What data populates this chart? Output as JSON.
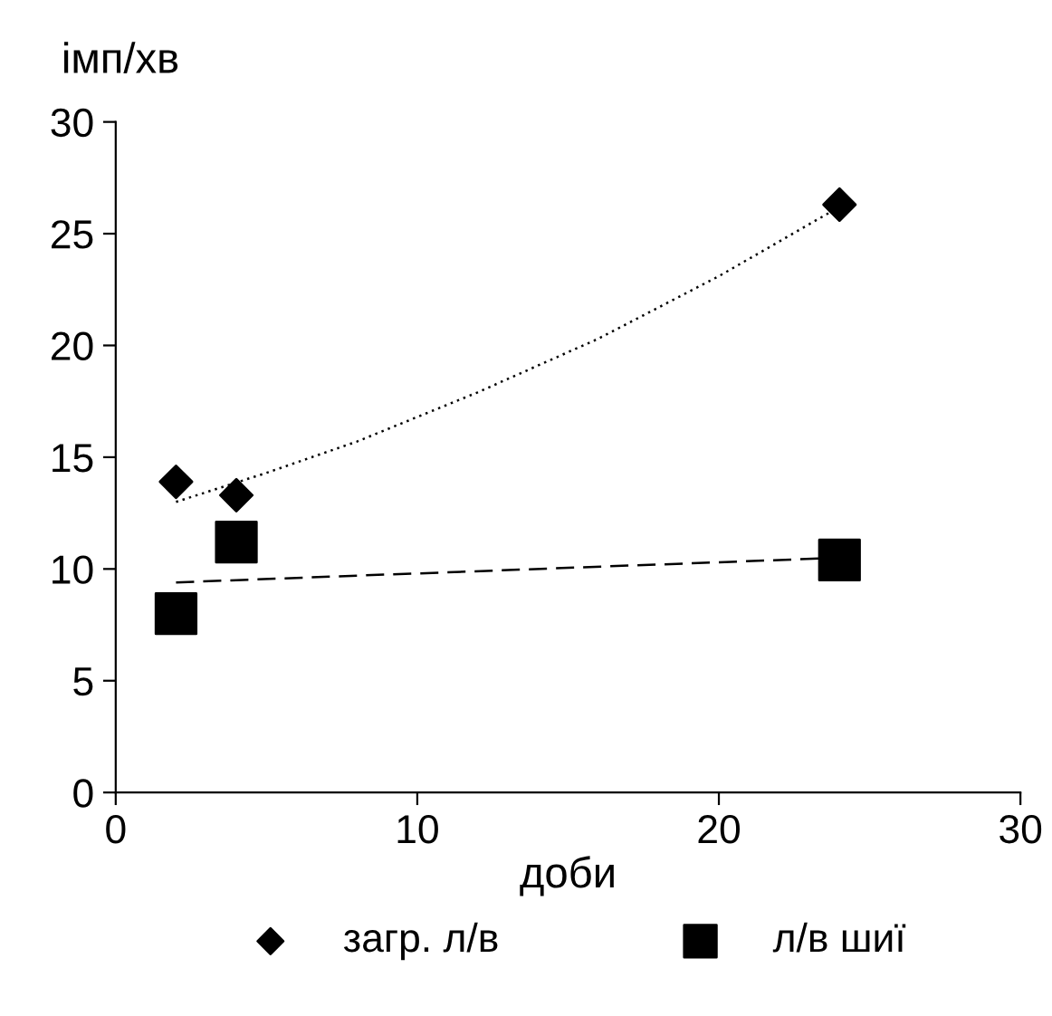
{
  "chart_data": {
    "type": "scatter",
    "xlabel": "доби",
    "ylabel": "імп/хв",
    "xlim": [
      0,
      30
    ],
    "ylim": [
      0,
      30
    ],
    "xticks": [
      0,
      10,
      20,
      30
    ],
    "yticks": [
      0,
      5,
      10,
      15,
      20,
      25,
      30
    ],
    "grid": false,
    "legend": "bottom",
    "series": [
      {
        "name": "загр. л/в",
        "color": "#000000",
        "marker": "diamond",
        "x": [
          2,
          4,
          24
        ],
        "values": [
          13.9,
          13.3,
          26.3
        ]
      },
      {
        "name": "л/в шиї",
        "color": "#000000",
        "marker": "square",
        "x": [
          2,
          4,
          24
        ],
        "values": [
          8.0,
          11.2,
          10.4
        ]
      },
      {
        "type": "line",
        "color": "#000000",
        "line_style": "dotted",
        "marker": "none",
        "x": [
          2,
          5,
          8,
          12,
          16,
          20,
          24
        ],
        "values": [
          13.0,
          14.3,
          15.7,
          17.9,
          20.3,
          23.1,
          26.2
        ]
      },
      {
        "type": "line",
        "color": "#000000",
        "line_style": "dashed",
        "marker": "none",
        "x": [
          2,
          24
        ],
        "values": [
          9.4,
          10.5
        ]
      }
    ]
  }
}
